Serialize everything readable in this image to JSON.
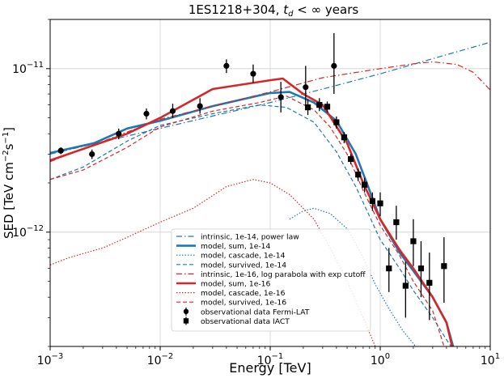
{
  "chart_data": {
    "type": "line",
    "title_main": "1ES1218+304,",
    "title_sym": "t",
    "title_sub": "d",
    "title_rest": " < ∞ years",
    "xlabel": "Energy [TeV]",
    "ylabel_main": "SED [TeV cm",
    "ylabel_sup1": "−2",
    "ylabel_mid": "s",
    "ylabel_sup2": "−1",
    "ylabel_end": "]",
    "xscale": "log",
    "yscale": "log",
    "xlim": [
      0.001,
      10
    ],
    "ylim": [
      2e-13,
      2e-11
    ],
    "grid": true,
    "legend_position": "lower-center",
    "x_ticks": [
      {
        "value": 0.001,
        "base": "10",
        "exp": "−3"
      },
      {
        "value": 0.01,
        "base": "10",
        "exp": "−2"
      },
      {
        "value": 0.1,
        "base": "10",
        "exp": "−1"
      },
      {
        "value": 1,
        "base": "10",
        "exp": "0"
      },
      {
        "value": 10,
        "base": "10",
        "exp": "1"
      }
    ],
    "y_ticks": [
      {
        "value": 1e-12,
        "base": "10",
        "exp": "−12"
      },
      {
        "value": 1e-11,
        "base": "10",
        "exp": "−11"
      }
    ],
    "series": [
      {
        "name": "intrinsic, 1e-14, power law",
        "color": "#1f77b4",
        "style": "dashdot",
        "width": 1.2,
        "points": [
          [
            0.001,
            3e-12
          ],
          [
            0.1,
            6.2e-12
          ],
          [
            0.3,
            7.5e-12
          ],
          [
            1,
            9.3e-12
          ],
          [
            3,
            1.15e-11
          ],
          [
            10,
            1.45e-11
          ]
        ]
      },
      {
        "name": "model, sum, 1e-14",
        "color": "#1f77b4",
        "style": "solid",
        "width": 2.6,
        "points": [
          [
            0.001,
            3.05e-12
          ],
          [
            0.0025,
            3.5e-12
          ],
          [
            0.005,
            4.3e-12
          ],
          [
            0.01,
            4.8e-12
          ],
          [
            0.03,
            5.9e-12
          ],
          [
            0.1,
            7.1e-12
          ],
          [
            0.15,
            7.2e-12
          ],
          [
            0.25,
            6.2e-12
          ],
          [
            0.4,
            4.8e-12
          ],
          [
            0.6,
            3e-12
          ],
          [
            0.8,
            1.8e-12
          ],
          [
            1.0,
            1.2e-12
          ],
          [
            1.5,
            7.5e-13
          ],
          [
            2,
            5.8e-13
          ],
          [
            3,
            4e-13
          ],
          [
            4,
            2.8e-13
          ],
          [
            4.6,
            2e-13
          ]
        ]
      },
      {
        "name": "model, cascade, 1e-14",
        "color": "#1f77b4",
        "style": "dotted",
        "width": 1.2,
        "points": [
          [
            0.15,
            1.2e-12
          ],
          [
            0.2,
            1.35e-12
          ],
          [
            0.25,
            1.4e-12
          ],
          [
            0.35,
            1.3e-12
          ],
          [
            0.5,
            1.05e-12
          ],
          [
            0.7,
            7e-13
          ],
          [
            0.9,
            4.8e-13
          ],
          [
            1.2,
            3.4e-13
          ],
          [
            1.6,
            2.5e-13
          ],
          [
            2.1,
            2e-13
          ]
        ]
      },
      {
        "name": "model, survived, 1e-14",
        "color": "#1f77b4",
        "style": "dashed",
        "width": 1.2,
        "points": [
          [
            0.001,
            2.1e-12
          ],
          [
            0.002,
            2.5e-12
          ],
          [
            0.005,
            3.6e-12
          ],
          [
            0.01,
            4.5e-12
          ],
          [
            0.03,
            5.3e-12
          ],
          [
            0.08,
            6e-12
          ],
          [
            0.14,
            5.8e-12
          ],
          [
            0.25,
            4.7e-12
          ],
          [
            0.4,
            3.1e-12
          ],
          [
            0.6,
            1.9e-12
          ],
          [
            0.8,
            1.25e-12
          ],
          [
            1.0,
            9e-13
          ],
          [
            1.5,
            6e-13
          ],
          [
            2,
            4.4e-13
          ],
          [
            3,
            3e-13
          ],
          [
            4,
            2.2e-13
          ],
          [
            4.4,
            2e-13
          ]
        ]
      },
      {
        "name": "intrinsic, 1e-16, log parabola with exp cutoff",
        "color": "#d62728",
        "style": "dashdot",
        "width": 1.2,
        "points": [
          [
            0.001,
            2.7e-12
          ],
          [
            0.01,
            4.9e-12
          ],
          [
            0.1,
            7.2e-12
          ],
          [
            0.3,
            8.8e-12
          ],
          [
            1,
            1e-11
          ],
          [
            2,
            1.07e-11
          ],
          [
            3,
            1.1e-11
          ],
          [
            5,
            1.06e-11
          ],
          [
            7,
            9.5e-12
          ],
          [
            10,
            7.4e-12
          ]
        ]
      },
      {
        "name": "model, sum, 1e-16",
        "color": "#d62728",
        "style": "solid",
        "width": 2.6,
        "points": [
          [
            0.001,
            2.75e-12
          ],
          [
            0.0025,
            3.4e-12
          ],
          [
            0.005,
            4e-12
          ],
          [
            0.01,
            5e-12
          ],
          [
            0.03,
            7.5e-12
          ],
          [
            0.1,
            8.5e-12
          ],
          [
            0.13,
            8.7e-12
          ],
          [
            0.2,
            7e-12
          ],
          [
            0.3,
            6e-12
          ],
          [
            0.5,
            3.5e-12
          ],
          [
            0.7,
            2e-12
          ],
          [
            1.0,
            1.2e-12
          ],
          [
            1.5,
            7.8e-13
          ],
          [
            2,
            6e-13
          ],
          [
            3,
            4e-13
          ],
          [
            4,
            2.8e-13
          ],
          [
            4.5,
            2e-13
          ]
        ]
      },
      {
        "name": "model, cascade, 1e-16",
        "color": "#d62728",
        "style": "dotted",
        "width": 1.2,
        "points": [
          [
            0.001,
            6.3e-13
          ],
          [
            0.0015,
            7e-13
          ],
          [
            0.003,
            8e-13
          ],
          [
            0.005,
            9.3e-13
          ],
          [
            0.01,
            1.15e-12
          ],
          [
            0.02,
            1.4e-12
          ],
          [
            0.04,
            1.9e-12
          ],
          [
            0.07,
            2.1e-12
          ],
          [
            0.1,
            2e-12
          ],
          [
            0.15,
            1.7e-12
          ],
          [
            0.25,
            1.2e-12
          ],
          [
            0.35,
            8e-13
          ],
          [
            0.5,
            5e-13
          ],
          [
            0.7,
            3e-13
          ],
          [
            0.9,
            2e-13
          ]
        ]
      },
      {
        "name": "model, survived, 1e-16",
        "color": "#d62728",
        "style": "dashed",
        "width": 1.2,
        "points": [
          [
            0.001,
            2.1e-12
          ],
          [
            0.002,
            2.4e-12
          ],
          [
            0.005,
            3.3e-12
          ],
          [
            0.01,
            4.4e-12
          ],
          [
            0.03,
            5.5e-12
          ],
          [
            0.08,
            6.2e-12
          ],
          [
            0.14,
            6.8e-12
          ],
          [
            0.25,
            5.6e-12
          ],
          [
            0.35,
            4.4e-12
          ],
          [
            0.5,
            3e-12
          ],
          [
            0.7,
            1.8e-12
          ],
          [
            1.0,
            1.1e-12
          ],
          [
            1.5,
            7.2e-13
          ],
          [
            2,
            5e-13
          ],
          [
            3,
            3.3e-13
          ],
          [
            3.8,
            2e-13
          ]
        ]
      }
    ],
    "fermi": {
      "name": "observational data Fermi-LAT",
      "points": [
        {
          "x": 0.00125,
          "y": 3.15e-12,
          "lo": 3e-12,
          "hi": 3.3e-12
        },
        {
          "x": 0.0024,
          "y": 3e-12,
          "lo": 2.8e-12,
          "hi": 3.2e-12
        },
        {
          "x": 0.0042,
          "y": 4e-12,
          "lo": 3.7e-12,
          "hi": 4.3e-12
        },
        {
          "x": 0.0075,
          "y": 5.3e-12,
          "lo": 4.9e-12,
          "hi": 5.7e-12
        },
        {
          "x": 0.013,
          "y": 5.5e-12,
          "lo": 5e-12,
          "hi": 6.1e-12
        },
        {
          "x": 0.023,
          "y": 5.9e-12,
          "lo": 5.3e-12,
          "hi": 6.6e-12
        },
        {
          "x": 0.04,
          "y": 1.04e-11,
          "lo": 9.4e-12,
          "hi": 1.14e-11
        },
        {
          "x": 0.07,
          "y": 9.3e-12,
          "lo": 8.2e-12,
          "hi": 1.06e-11
        },
        {
          "x": 0.125,
          "y": 6.7e-12,
          "lo": 5.4e-12,
          "hi": 8.3e-12
        },
        {
          "x": 0.21,
          "y": 7.7e-12,
          "lo": 5.6e-12,
          "hi": 1.04e-11
        },
        {
          "x": 0.38,
          "y": 1.04e-11,
          "lo": 7e-12,
          "hi": 1.65e-11
        }
      ]
    },
    "iact": {
      "name": "observational data IACT",
      "points": [
        {
          "x": 0.22,
          "y": 5.8e-12,
          "lo": 5.2e-12,
          "hi": 6.5e-12
        },
        {
          "x": 0.28,
          "y": 6e-12,
          "lo": 5.5e-12,
          "hi": 6.6e-12
        },
        {
          "x": 0.33,
          "y": 5.85e-12,
          "lo": 5.4e-12,
          "hi": 6.3e-12
        },
        {
          "x": 0.4,
          "y": 4.7e-12,
          "lo": 4.3e-12,
          "hi": 5.1e-12
        },
        {
          "x": 0.47,
          "y": 3.8e-12,
          "lo": 3.5e-12,
          "hi": 4.1e-12
        },
        {
          "x": 0.54,
          "y": 2.8e-12,
          "lo": 2.6e-12,
          "hi": 3e-12
        },
        {
          "x": 0.63,
          "y": 2.25e-12,
          "lo": 2.05e-12,
          "hi": 2.45e-12
        },
        {
          "x": 0.72,
          "y": 1.95e-12,
          "lo": 1.75e-12,
          "hi": 2.15e-12
        },
        {
          "x": 0.85,
          "y": 1.55e-12,
          "lo": 1.35e-12,
          "hi": 1.75e-12
        },
        {
          "x": 1.0,
          "y": 1.5e-12,
          "lo": 1.25e-12,
          "hi": 1.75e-12
        },
        {
          "x": 1.2,
          "y": 6e-13,
          "lo": 4.3e-13,
          "hi": 8e-13
        },
        {
          "x": 1.4,
          "y": 1.15e-12,
          "lo": 9e-13,
          "hi": 1.45e-12
        },
        {
          "x": 1.7,
          "y": 4.7e-13,
          "lo": 3e-13,
          "hi": 6.6e-13
        },
        {
          "x": 2.0,
          "y": 8.8e-13,
          "lo": 6.2e-13,
          "hi": 1.2e-12
        },
        {
          "x": 2.35,
          "y": 6e-13,
          "lo": 4e-13,
          "hi": 8.8e-13
        },
        {
          "x": 2.8,
          "y": 4.9e-13,
          "lo": 2.9e-13,
          "hi": 7.5e-13
        },
        {
          "x": 3.8,
          "y": 6.2e-13,
          "lo": 3.7e-13,
          "hi": 9.3e-13
        }
      ]
    }
  }
}
